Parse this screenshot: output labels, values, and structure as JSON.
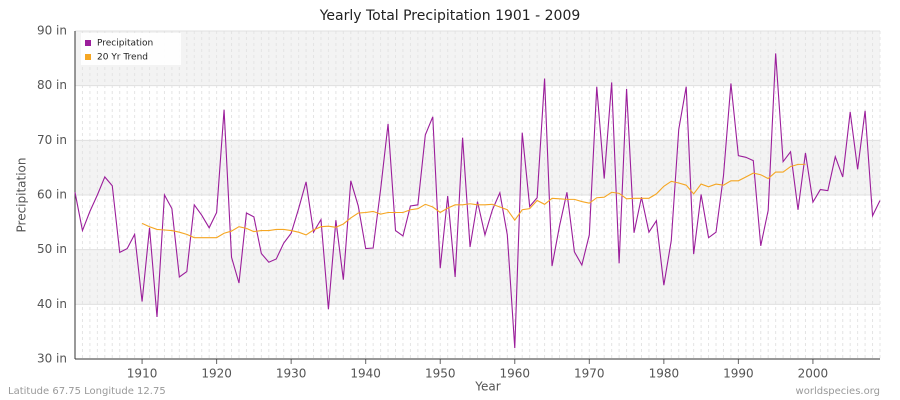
{
  "chart_data": {
    "type": "line",
    "title": "Yearly Total Precipitation 1901 - 2009",
    "x_label": "Year",
    "y_label": "Precipitation",
    "footer_left": "Latitude 67.75 Longitude 12.75",
    "footer_right": "worldspecies.org",
    "x": [
      1901,
      1902,
      1903,
      1904,
      1905,
      1906,
      1907,
      1908,
      1909,
      1910,
      1911,
      1912,
      1913,
      1914,
      1915,
      1916,
      1917,
      1918,
      1919,
      1920,
      1921,
      1922,
      1923,
      1924,
      1925,
      1926,
      1927,
      1928,
      1929,
      1930,
      1931,
      1932,
      1933,
      1934,
      1935,
      1936,
      1937,
      1938,
      1939,
      1940,
      1941,
      1942,
      1943,
      1944,
      1945,
      1946,
      1947,
      1948,
      1949,
      1950,
      1951,
      1952,
      1953,
      1954,
      1955,
      1956,
      1957,
      1958,
      1959,
      1960,
      1961,
      1962,
      1963,
      1964,
      1965,
      1966,
      1967,
      1968,
      1969,
      1970,
      1971,
      1972,
      1973,
      1974,
      1975,
      1976,
      1977,
      1978,
      1979,
      1980,
      1981,
      1982,
      1983,
      1984,
      1985,
      1986,
      1987,
      1988,
      1989,
      1990,
      1991,
      1992,
      1993,
      1994,
      1995,
      1996,
      1997,
      1998,
      1999,
      2000,
      2001,
      2002,
      2003,
      2004,
      2005,
      2006,
      2007,
      2008,
      2009
    ],
    "series": [
      {
        "name": "Precipitation",
        "color": "#9b1e9b",
        "values": [
          60.5,
          53.5,
          57,
          60,
          63.3,
          61.7,
          49.5,
          50.2,
          52.8,
          40.5,
          54,
          37.7,
          60,
          57.5,
          45,
          46,
          58.2,
          56.3,
          54,
          56.8,
          75.6,
          48.6,
          43.9,
          56.7,
          56,
          49.3,
          47.7,
          48.3,
          51.2,
          53,
          57.5,
          62.4,
          53.2,
          55.5,
          39.1,
          55.4,
          44.5,
          62.6,
          58,
          50.2,
          50.3,
          61,
          73,
          53.5,
          52.5,
          58,
          58.2,
          71,
          74.3,
          46.6,
          59.8,
          45,
          70.5,
          50.5,
          58.8,
          52.7,
          57.3,
          60.4,
          52.7,
          32,
          71.4,
          57.9,
          59.5,
          81.3,
          47,
          54.3,
          60.5,
          49.6,
          47.2,
          52.7,
          79.8,
          63,
          80.6,
          47.5,
          79.4,
          53.1,
          59.6,
          53.2,
          55.3,
          43.5,
          51.7,
          72,
          79.8,
          49.2,
          60.1,
          52.2,
          53.2,
          63.5,
          80.4,
          67.2,
          66.9,
          66.3,
          50.7,
          57.2,
          85.9,
          66.1,
          67.9,
          57.3,
          67.7,
          58.7,
          61,
          60.8,
          67,
          63.3,
          75.2,
          64.7,
          75.4,
          56.2,
          59
        ]
      },
      {
        "name": "20 Yr Trend",
        "color": "#f5a623",
        "values": [
          null,
          null,
          null,
          null,
          null,
          null,
          null,
          null,
          null,
          54.8,
          54.2,
          53.7,
          53.6,
          53.5,
          53.2,
          52.8,
          52.2,
          52.2,
          52.2,
          52.2,
          53,
          53.4,
          54.2,
          53.9,
          53.3,
          53.5,
          53.5,
          53.7,
          53.7,
          53.5,
          53.2,
          52.7,
          53.6,
          54.2,
          54.3,
          54.1,
          54.7,
          55.8,
          56.7,
          56.8,
          57,
          56.5,
          56.8,
          56.8,
          56.8,
          57.3,
          57.5,
          58.3,
          57.8,
          56.8,
          57.6,
          58.2,
          58.2,
          58.4,
          58.2,
          58.2,
          58.3,
          57.8,
          57.3,
          55.4,
          57.3,
          57.5,
          59,
          58.3,
          59.4,
          59.3,
          59.2,
          59.2,
          58.8,
          58.5,
          59.5,
          59.6,
          60.5,
          60.3,
          59.3,
          59.4,
          59.4,
          59.4,
          60.2,
          61.6,
          62.5,
          62.2,
          61.8,
          60.2,
          62,
          61.5,
          62,
          61.8,
          62.6,
          62.6,
          63.3,
          64,
          63.7,
          63,
          64.2,
          64.2,
          65.2,
          65.6,
          65.6,
          null,
          null,
          null,
          null,
          null,
          null,
          null,
          null,
          null,
          null
        ]
      }
    ],
    "xlim": [
      1901,
      2009
    ],
    "xticks": [
      1910,
      1920,
      1930,
      1940,
      1950,
      1960,
      1970,
      1980,
      1990,
      2000
    ],
    "ylim": [
      30,
      90
    ],
    "yticks": [
      {
        "value": 30,
        "label": "30 in"
      },
      {
        "value": 40,
        "label": "40 in"
      },
      {
        "value": 50,
        "label": "50 in"
      },
      {
        "value": 60,
        "label": "60 in"
      },
      {
        "value": 70,
        "label": "70 in"
      },
      {
        "value": 80,
        "label": "80 in"
      },
      {
        "value": 90,
        "label": "90 in"
      }
    ],
    "grid": true,
    "legend": "top-left"
  }
}
